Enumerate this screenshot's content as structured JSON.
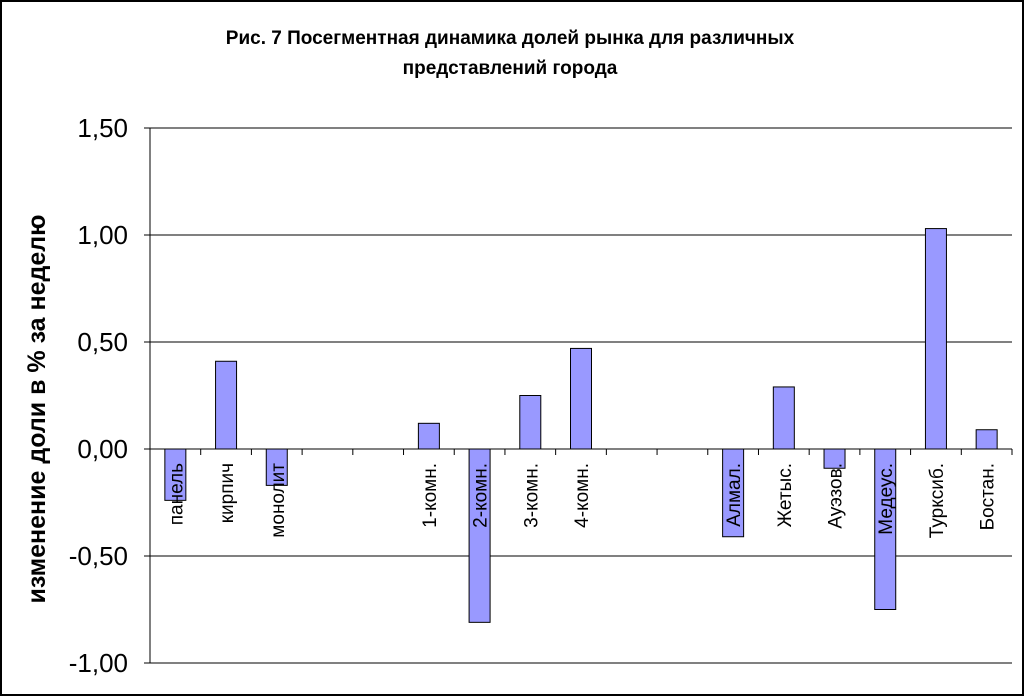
{
  "chart_data": {
    "type": "bar",
    "title": "Рис. 7 Посегментная динамика долей рынка для различных представлений города",
    "title_lines": [
      "Рис. 7 Посегментная динамика долей рынка для различных",
      "представлений города"
    ],
    "ylabel": "изменение доли в % за неделю",
    "xlabel": "",
    "ylim": [
      -1.0,
      1.5
    ],
    "yticks": [
      1.5,
      1.0,
      0.5,
      0.0,
      -0.5,
      -1.0
    ],
    "ytick_labels": [
      "1,50",
      "1,00",
      "0,50",
      "0,00",
      "-0,50",
      "-1,00"
    ],
    "grid": true,
    "bar_color": "#9999ff",
    "categories": [
      "панель",
      "кирпич",
      "монолит",
      "",
      "",
      "1-комн.",
      "2-комн.",
      "3-комн.",
      "4-комн.",
      "",
      "",
      "Алмал.",
      "Жетыс.",
      "Ауэзов.",
      "Медеус.",
      "Турксиб.",
      "Бостан."
    ],
    "values": [
      -0.24,
      0.41,
      -0.17,
      null,
      null,
      0.12,
      -0.81,
      0.25,
      0.47,
      null,
      null,
      -0.41,
      0.29,
      -0.09,
      -0.75,
      1.03,
      0.09
    ]
  }
}
